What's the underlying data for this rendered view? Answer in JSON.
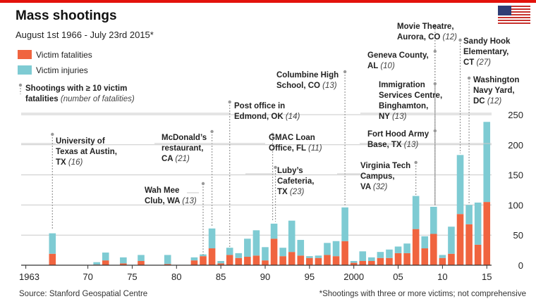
{
  "header": {
    "title": "Mass shootings",
    "subtitle": "August 1st 1966 - July 23rd 2015*"
  },
  "legend": {
    "fatalities": "Victim fatalities",
    "injuries": "Victim injuries",
    "key_main": "Shootings with ≥ 10 victim fatalities",
    "key_sub": "(number of fatalities)"
  },
  "footer": {
    "source": "Source: Stanford Geospatial Centre",
    "note": "*Shootings with three or more victims; not comprehensive"
  },
  "colors": {
    "fatalities": "#f0643f",
    "injuries": "#7ecbd3",
    "grid": "#c9c9c9",
    "callout": "#999999",
    "text": "#222222",
    "accent": "#e3120b"
  },
  "chart_data": {
    "type": "bar",
    "stacked": true,
    "x_tick_labels": [
      "1963",
      "70",
      "75",
      "80",
      "85",
      "90",
      "95",
      "2000",
      "05",
      "10",
      "15"
    ],
    "x_tick_years": [
      1963,
      1970,
      1975,
      1980,
      1985,
      1990,
      1995,
      2000,
      2005,
      2010,
      2015
    ],
    "ylim": [
      0,
      250
    ],
    "y_ticks": [
      0,
      50,
      100,
      150,
      200,
      250
    ],
    "series": [
      {
        "name": "Victim fatalities",
        "key": "fatalities",
        "points": [
          [
            1966,
            19
          ],
          [
            1971,
            1
          ],
          [
            1972,
            8
          ],
          [
            1974,
            3
          ],
          [
            1976,
            7
          ],
          [
            1979,
            2
          ],
          [
            1982,
            8
          ],
          [
            1983,
            15
          ],
          [
            1984,
            28
          ],
          [
            1985,
            3
          ],
          [
            1986,
            17
          ],
          [
            1987,
            12
          ],
          [
            1988,
            14
          ],
          [
            1989,
            16
          ],
          [
            1990,
            8
          ],
          [
            1991,
            44
          ],
          [
            1992,
            15
          ],
          [
            1993,
            22
          ],
          [
            1994,
            16
          ],
          [
            1995,
            12
          ],
          [
            1996,
            12
          ],
          [
            1997,
            17
          ],
          [
            1998,
            15
          ],
          [
            1999,
            40
          ],
          [
            2000,
            4
          ],
          [
            2001,
            7
          ],
          [
            2002,
            7
          ],
          [
            2003,
            12
          ],
          [
            2004,
            12
          ],
          [
            2005,
            20
          ],
          [
            2006,
            20
          ],
          [
            2007,
            60
          ],
          [
            2008,
            28
          ],
          [
            2009,
            52
          ],
          [
            2010,
            12
          ],
          [
            2011,
            19
          ],
          [
            2012,
            85
          ],
          [
            2013,
            68
          ],
          [
            2014,
            34
          ],
          [
            2015,
            105
          ]
        ]
      },
      {
        "name": "Victim injuries",
        "key": "injuries",
        "points": [
          [
            1966,
            34
          ],
          [
            1971,
            4
          ],
          [
            1972,
            13
          ],
          [
            1974,
            10
          ],
          [
            1976,
            10
          ],
          [
            1979,
            15
          ],
          [
            1982,
            5
          ],
          [
            1983,
            3
          ],
          [
            1984,
            33
          ],
          [
            1985,
            4
          ],
          [
            1986,
            12
          ],
          [
            1987,
            8
          ],
          [
            1988,
            30
          ],
          [
            1989,
            42
          ],
          [
            1990,
            22
          ],
          [
            1991,
            25
          ],
          [
            1992,
            14
          ],
          [
            1993,
            52
          ],
          [
            1994,
            26
          ],
          [
            1995,
            3
          ],
          [
            1996,
            4
          ],
          [
            1997,
            20
          ],
          [
            1998,
            25
          ],
          [
            1999,
            56
          ],
          [
            2000,
            3
          ],
          [
            2001,
            16
          ],
          [
            2002,
            6
          ],
          [
            2003,
            10
          ],
          [
            2004,
            14
          ],
          [
            2005,
            11
          ],
          [
            2006,
            16
          ],
          [
            2007,
            55
          ],
          [
            2008,
            20
          ],
          [
            2009,
            45
          ],
          [
            2010,
            5
          ],
          [
            2011,
            45
          ],
          [
            2012,
            98
          ],
          [
            2013,
            32
          ],
          [
            2014,
            70
          ],
          [
            2015,
            133
          ]
        ]
      }
    ],
    "annotations": [
      {
        "year": 1966,
        "lines": [
          "University of",
          "Texas at Austin,"
        ],
        "last": "TX",
        "num": "(16)"
      },
      {
        "year": 1983,
        "lines": [
          "Wah Mee"
        ],
        "last": "Club, WA",
        "num": "(13)"
      },
      {
        "year": 1984,
        "lines": [
          "McDonald’s",
          "restaurant,"
        ],
        "last": "CA",
        "num": "(21)"
      },
      {
        "year": 1986,
        "lines": [
          "Post office in"
        ],
        "last": "Edmond, OK",
        "num": "(14)"
      },
      {
        "year": 1991,
        "lines": [
          "GMAC Loan"
        ],
        "last": "Office, FL",
        "num": "(11)"
      },
      {
        "year": 1991,
        "lines": [
          "Luby’s",
          "Cafeteria,"
        ],
        "last": "TX",
        "num": "(23)"
      },
      {
        "year": 1999,
        "lines": [
          "Columbine High"
        ],
        "last": "School, CO",
        "num": "(13)"
      },
      {
        "year": 2007,
        "lines": [
          "Virginia Tech",
          "Campus,"
        ],
        "last": "VA",
        "num": "(32)"
      },
      {
        "year": 2009,
        "lines": [
          "Movie Theatre,"
        ],
        "last": "Aurora, CO",
        "num": "(12)"
      },
      {
        "year": 2009,
        "lines": [
          "Geneva County,"
        ],
        "last": "AL",
        "num": "(10)"
      },
      {
        "year": 2009,
        "lines": [
          "Immigration",
          "Services Centre,",
          "Binghamton,"
        ],
        "last": "NY",
        "num": "(13)"
      },
      {
        "year": 2009,
        "lines": [
          "Fort Hood Army"
        ],
        "last": "Base, TX",
        "num": "(13)"
      },
      {
        "year": 2012,
        "lines": [
          "Sandy Hook",
          "Elementary,"
        ],
        "last": "CT",
        "num": "(27)"
      },
      {
        "year": 2013,
        "lines": [
          "Washington",
          "Navy Yard,"
        ],
        "last": "DC",
        "num": "(12)"
      }
    ]
  }
}
